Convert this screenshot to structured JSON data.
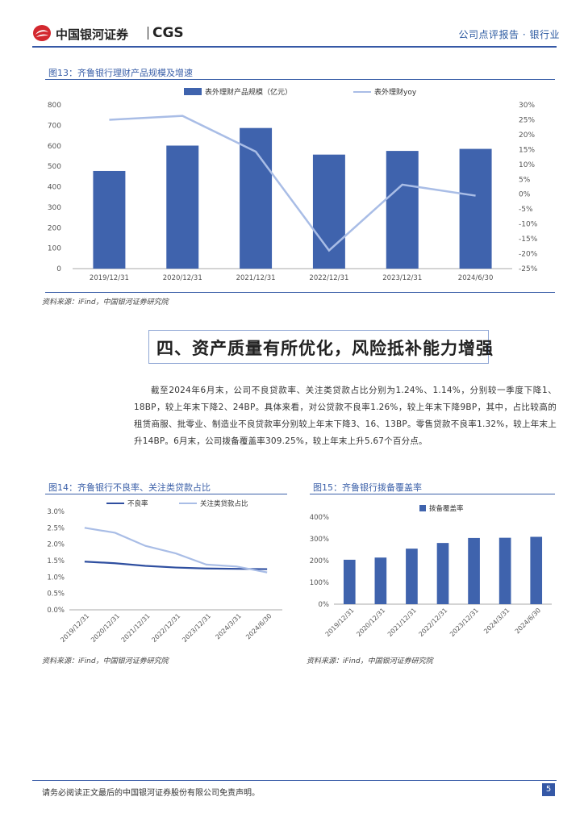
{
  "header": {
    "brand_cn": "中国银河证券",
    "brand_en": "CGS",
    "report_type": "公司点评报告 · 银行业"
  },
  "figures": {
    "fig13": {
      "title": "图13：齐鲁银行理财产品规模及增速",
      "source": "资料来源：iFind，中国银河证券研究院"
    },
    "fig14": {
      "title": "图14：齐鲁银行不良率、关注类贷款占比",
      "source": "资料来源：iFind，中国银河证券研究院"
    },
    "fig15": {
      "title": "图15：齐鲁银行拨备覆盖率",
      "source": "资料来源：iFind，中国银河证券研究院"
    }
  },
  "section": {
    "title": "四、资产质量有所优化，风险抵补能力增强",
    "paragraph": "截至2024年6月末，公司不良贷款率、关注类贷款占比分别为1.24%、1.14%，分别较一季度下降1、18BP，较上年末下降2、24BP。具体来看，对公贷款不良率1.26%，较上年末下降9BP，其中，占比较高的租赁商服、批零业、制造业不良贷款率分别较上年末下降3、16、13BP。零售贷款不良率1.32%，较上年末上升14BP。6月末，公司拨备覆盖率309.25%，较上年末上升5.67个百分点。"
  },
  "footer": {
    "disclaimer": "请务必阅读正文最后的中国银河证券股份有限公司免责声明。",
    "page_number": "5"
  },
  "chart_data": [
    {
      "type": "bar+line",
      "categories": [
        "2019/12/31",
        "2020/12/31",
        "2021/12/31",
        "2022/12/31",
        "2023/12/31",
        "2024/6/30"
      ],
      "series": [
        {
          "name": "表外理财产品规模（亿元）",
          "type": "bar",
          "axis": "left",
          "values": [
            477,
            601,
            687,
            557,
            575,
            585
          ],
          "color": "#3f63ad"
        },
        {
          "name": "表外理财yoy",
          "type": "line",
          "axis": "right",
          "values": [
            25,
            26.3,
            14.3,
            -18.9,
            3.2,
            -0.5
          ],
          "color": "#a9bde6"
        }
      ],
      "ylim_left": [
        0,
        800
      ],
      "yticks_left": [
        "0",
        "100",
        "200",
        "300",
        "400",
        "500",
        "600",
        "700",
        "800"
      ],
      "ylim_right": [
        -25,
        30
      ],
      "yticks_right": [
        "-25%",
        "-20%",
        "-15%",
        "-10%",
        "-5%",
        "0%",
        "5%",
        "10%",
        "15%",
        "20%",
        "25%",
        "30%"
      ],
      "legend_position": "top"
    },
    {
      "type": "line",
      "categories": [
        "2019/12/31",
        "2020/12/31",
        "2021/12/31",
        "2022/12/31",
        "2023/12/31",
        "2024/3/31",
        "2024/6/30"
      ],
      "series": [
        {
          "name": "不良率",
          "values": [
            1.47,
            1.42,
            1.34,
            1.29,
            1.26,
            1.25,
            1.24
          ],
          "color": "#2f4fa0"
        },
        {
          "name": "关注类贷款占比",
          "values": [
            2.5,
            2.35,
            1.95,
            1.72,
            1.38,
            1.32,
            1.14
          ],
          "color": "#a9bde6"
        }
      ],
      "ylim": [
        0,
        3.0
      ],
      "yticks": [
        "0.0%",
        "0.5%",
        "1.0%",
        "1.5%",
        "2.0%",
        "2.5%",
        "3.0%"
      ],
      "legend_position": "top"
    },
    {
      "type": "bar",
      "categories": [
        "2019/12/31",
        "2020/12/31",
        "2021/12/31",
        "2022/12/31",
        "2023/12/31",
        "2024/3/31",
        "2024/6/30"
      ],
      "series": [
        {
          "name": "拨备覆盖率",
          "values": [
            204,
            214,
            255,
            281,
            304,
            305,
            309.25
          ],
          "color": "#3f63ad"
        }
      ],
      "ylim": [
        0,
        400
      ],
      "yticks": [
        "0%",
        "100%",
        "200%",
        "300%",
        "400%"
      ],
      "legend_position": "top"
    }
  ]
}
